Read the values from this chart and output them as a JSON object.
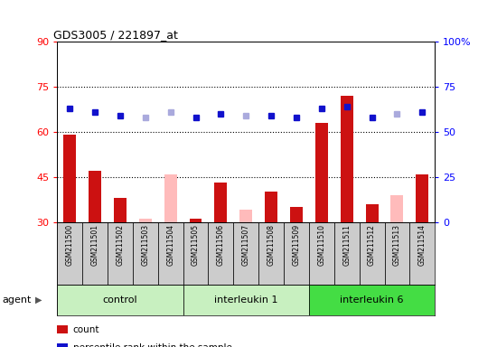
{
  "title": "GDS3005 / 221897_at",
  "samples": [
    "GSM211500",
    "GSM211501",
    "GSM211502",
    "GSM211503",
    "GSM211504",
    "GSM211505",
    "GSM211506",
    "GSM211507",
    "GSM211508",
    "GSM211509",
    "GSM211510",
    "GSM211511",
    "GSM211512",
    "GSM211513",
    "GSM211514"
  ],
  "groups": [
    {
      "name": "control",
      "start": 0,
      "end": 5,
      "color": "#c0f0c0"
    },
    {
      "name": "interleukin 1",
      "start": 5,
      "end": 10,
      "color": "#c0f0c0"
    },
    {
      "name": "interleukin 6",
      "start": 10,
      "end": 15,
      "color": "#44dd44"
    }
  ],
  "count_values": [
    59,
    47,
    38,
    null,
    null,
    31,
    43,
    null,
    40,
    35,
    63,
    72,
    36,
    null,
    46
  ],
  "count_absent": [
    null,
    null,
    null,
    31,
    46,
    null,
    null,
    34,
    null,
    null,
    null,
    null,
    null,
    39,
    null
  ],
  "rank_values": [
    63,
    61,
    59,
    null,
    null,
    58,
    60,
    null,
    59,
    58,
    63,
    64,
    58,
    null,
    61
  ],
  "rank_absent": [
    null,
    null,
    null,
    58,
    61,
    null,
    null,
    59,
    null,
    null,
    null,
    null,
    null,
    60,
    null
  ],
  "ylim_left": [
    30,
    90
  ],
  "ylim_right": [
    0,
    100
  ],
  "yticks_left": [
    30,
    45,
    60,
    75,
    90
  ],
  "yticks_right": [
    0,
    25,
    50,
    75,
    100
  ],
  "hlines": [
    45,
    60,
    75
  ],
  "bar_color": "#cc1111",
  "bar_absent_color": "#ffbbbb",
  "rank_color": "#1111cc",
  "rank_absent_color": "#aaaadd",
  "bar_width": 0.5
}
